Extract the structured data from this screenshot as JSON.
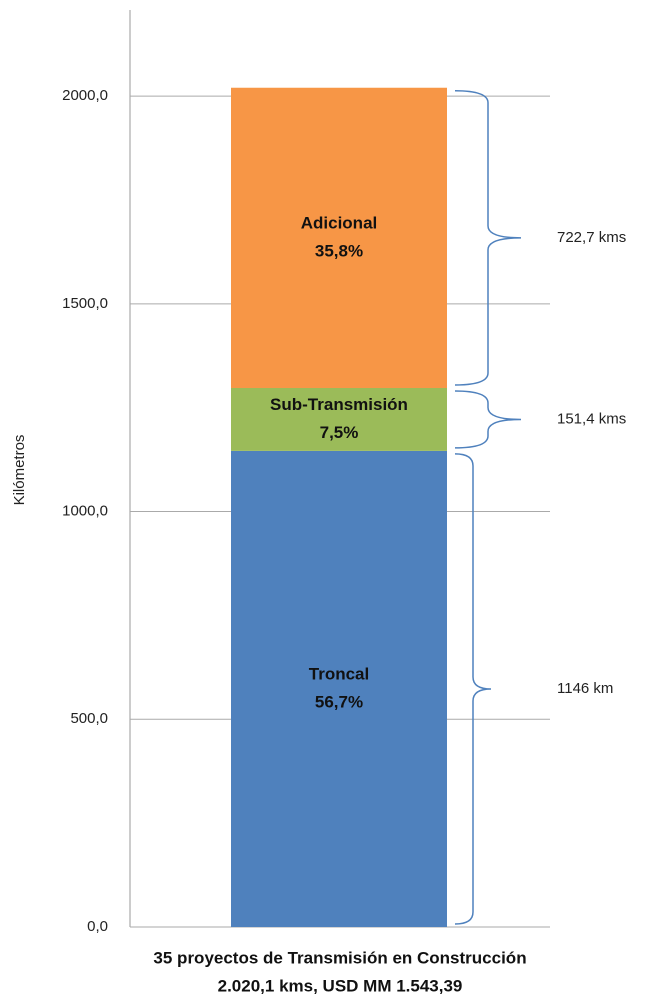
{
  "chart_data": {
    "type": "stacked_bar",
    "categories": [
      "35 proyectos de Transmisión en Construcción"
    ],
    "subtitle": "2.020,1 kms, USD MM 1.543,39",
    "ylabel": "Kilómetros",
    "ylim": [
      0,
      2200
    ],
    "yticks": [
      {
        "value": 0,
        "label": "0,0"
      },
      {
        "value": 500,
        "label": "500,0"
      },
      {
        "value": 1000,
        "label": "1000,0"
      },
      {
        "value": 1500,
        "label": "1500,0"
      },
      {
        "value": 2000,
        "label": "2000,0"
      }
    ],
    "grid": true,
    "brace_color": "#4f81bd",
    "series": [
      {
        "name": "Troncal",
        "color": "#4f81bd",
        "values": [
          1146
        ],
        "value_labels": [
          "1146 km"
        ],
        "share": 56.7,
        "share_label": "56,7%"
      },
      {
        "name": "Sub-Transmisión",
        "color": "#9bbb59",
        "values": [
          151.4
        ],
        "value_labels": [
          "151,4 kms"
        ],
        "share": 7.5,
        "share_label": "7,5%"
      },
      {
        "name": "Adicional",
        "color": "#f79646",
        "values": [
          722.7
        ],
        "value_labels": [
          "722,7 kms"
        ],
        "share": 35.8,
        "share_label": "35,8%"
      }
    ]
  }
}
